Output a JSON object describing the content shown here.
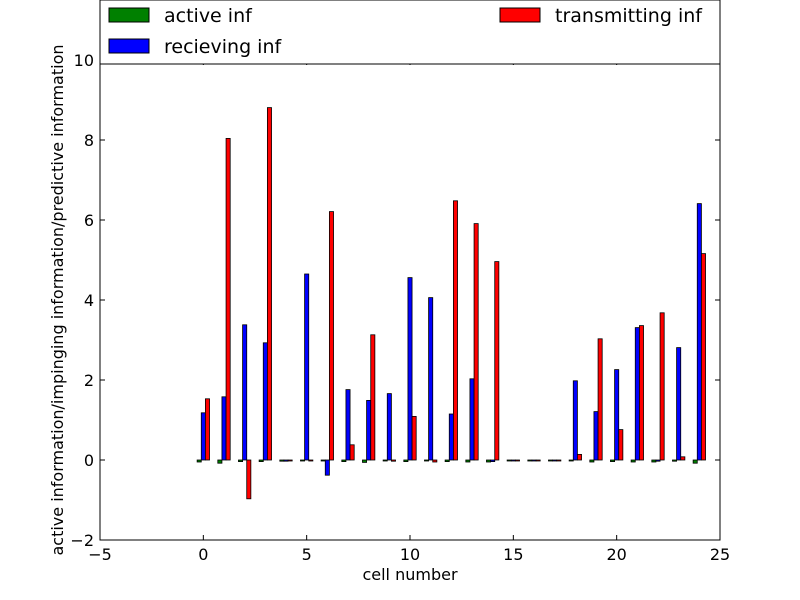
{
  "chart_data": {
    "type": "bar",
    "xlabel": "cell number",
    "ylabel": "active information/impinging information/predictive information",
    "xlim": [
      -5,
      25
    ],
    "ylim": [
      -2,
      10
    ],
    "xticks": [
      -5,
      0,
      5,
      10,
      15,
      20,
      25
    ],
    "yticks": [
      -2,
      0,
      2,
      4,
      6,
      8,
      10
    ],
    "grid": false,
    "legend_position": "top",
    "x": [
      0,
      1,
      2,
      3,
      4,
      5,
      6,
      7,
      8,
      9,
      10,
      11,
      12,
      13,
      14,
      15,
      16,
      17,
      18,
      19,
      20,
      21,
      22,
      23,
      24
    ],
    "series": [
      {
        "name": "active inf",
        "color": "#008000",
        "values": [
          -0.05,
          -0.08,
          -0.04,
          -0.04,
          -0.03,
          -0.02,
          -0.02,
          -0.04,
          -0.06,
          -0.02,
          -0.04,
          -0.02,
          -0.04,
          -0.05,
          -0.05,
          -0.02,
          -0.02,
          -0.02,
          -0.02,
          -0.05,
          -0.04,
          -0.05,
          -0.05,
          -0.03,
          -0.08
        ]
      },
      {
        "name": "recieving inf",
        "color": "#0000ff",
        "values": [
          1.18,
          1.58,
          3.38,
          2.93,
          -0.03,
          4.65,
          -0.38,
          1.76,
          1.49,
          1.66,
          4.56,
          4.06,
          1.15,
          2.03,
          -0.04,
          -0.02,
          -0.02,
          -0.02,
          1.98,
          1.21,
          2.26,
          3.31,
          -0.03,
          2.81,
          6.41
        ]
      },
      {
        "name": "transmitting inf",
        "color": "#ff0000",
        "values": [
          1.53,
          8.04,
          -0.97,
          8.81,
          -0.02,
          -0.02,
          6.21,
          0.38,
          3.13,
          -0.03,
          1.09,
          -0.05,
          6.48,
          5.91,
          4.96,
          -0.02,
          -0.02,
          -0.02,
          0.14,
          3.03,
          0.76,
          3.36,
          3.68,
          0.08,
          5.16
        ]
      }
    ]
  }
}
